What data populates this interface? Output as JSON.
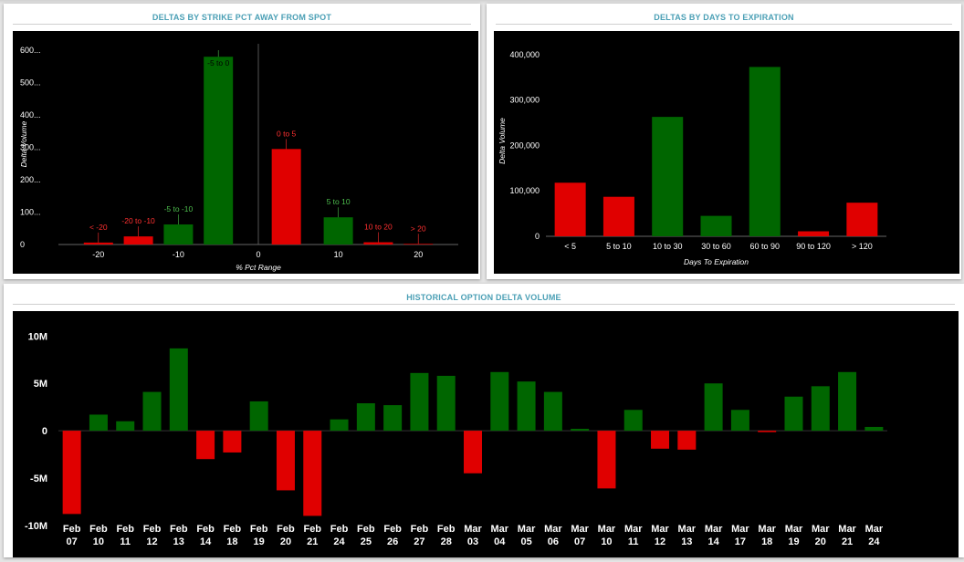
{
  "panels": {
    "strike": {
      "title": "DELTAS BY STRIKE PCT AWAY FROM SPOT"
    },
    "dte": {
      "title": "DELTAS BY DAYS TO EXPIRATION"
    },
    "history": {
      "title": "HISTORICAL OPTION DELTA VOLUME"
    }
  },
  "colors": {
    "positive": "#006600",
    "negative": "#e00000",
    "label_green": "#4cbc4c",
    "label_red": "#ff3030",
    "axis_text": "#ffffff"
  },
  "chart_data": [
    {
      "id": "strike",
      "type": "bar",
      "xlabel": "% Pct Range",
      "ylabel": "Delta Volume",
      "ylim": [
        0,
        620
      ],
      "xlim": [
        -25,
        25
      ],
      "y_ticks": [
        0,
        100,
        200,
        300,
        400,
        500,
        600
      ],
      "y_tick_labels": [
        "0",
        "100...",
        "200...",
        "300...",
        "400...",
        "500...",
        "600..."
      ],
      "x_ticks": [
        -20,
        -10,
        0,
        10,
        20
      ],
      "x_tick_labels": [
        "-20",
        "-10",
        "0",
        "10",
        "20"
      ],
      "bars": [
        {
          "label": "< -20",
          "x": -20,
          "value": 6,
          "color": "red"
        },
        {
          "label": "-20 to -10",
          "x": -15,
          "value": 25,
          "color": "red"
        },
        {
          "label": "-5 to -10",
          "x": -10,
          "value": 62,
          "color": "green"
        },
        {
          "label": "-5 to 0",
          "x": -5,
          "value": 580,
          "color": "green"
        },
        {
          "label": "0 to 5",
          "x": 3.5,
          "value": 295,
          "color": "red"
        },
        {
          "label": "5 to 10",
          "x": 10,
          "value": 84,
          "color": "green"
        },
        {
          "label": "10 to 20",
          "x": 15,
          "value": 7,
          "color": "red"
        },
        {
          "label": "> 20",
          "x": 20,
          "value": 2,
          "color": "red"
        }
      ]
    },
    {
      "id": "dte",
      "type": "bar",
      "xlabel": "Days To Expiration",
      "ylabel": "Delta Volume",
      "ylim": [
        0,
        420000
      ],
      "y_ticks": [
        0,
        100000,
        200000,
        300000,
        400000
      ],
      "y_tick_labels": [
        "0",
        "100,000",
        "200,000",
        "300,000",
        "400,000"
      ],
      "categories": [
        "< 5",
        "5 to 10",
        "10 to 30",
        "30 to 60",
        "60 to 90",
        "90 to 120",
        "> 120"
      ],
      "values": [
        118000,
        87000,
        263000,
        45000,
        373000,
        11000,
        74000
      ],
      "bar_colors": [
        "red",
        "red",
        "green",
        "green",
        "green",
        "red",
        "red"
      ]
    },
    {
      "id": "history",
      "type": "bar",
      "ylim": [
        -10500000,
        11000000
      ],
      "y_ticks": [
        -10000000,
        -5000000,
        0,
        5000000,
        10000000
      ],
      "y_tick_labels": [
        "-10M",
        "-5M",
        "0",
        "5M",
        "10M"
      ],
      "categories": [
        [
          "Feb",
          "07"
        ],
        [
          "Feb",
          "10"
        ],
        [
          "Feb",
          "11"
        ],
        [
          "Feb",
          "12"
        ],
        [
          "Feb",
          "13"
        ],
        [
          "Feb",
          "14"
        ],
        [
          "Feb",
          "18"
        ],
        [
          "Feb",
          "19"
        ],
        [
          "Feb",
          "20"
        ],
        [
          "Feb",
          "21"
        ],
        [
          "Feb",
          "24"
        ],
        [
          "Feb",
          "25"
        ],
        [
          "Feb",
          "26"
        ],
        [
          "Feb",
          "27"
        ],
        [
          "Feb",
          "28"
        ],
        [
          "Mar",
          "03"
        ],
        [
          "Mar",
          "04"
        ],
        [
          "Mar",
          "05"
        ],
        [
          "Mar",
          "06"
        ],
        [
          "Mar",
          "07"
        ],
        [
          "Mar",
          "10"
        ],
        [
          "Mar",
          "11"
        ],
        [
          "Mar",
          "12"
        ],
        [
          "Mar",
          "13"
        ],
        [
          "Mar",
          "14"
        ],
        [
          "Mar",
          "17"
        ],
        [
          "Mar",
          "18"
        ],
        [
          "Mar",
          "19"
        ],
        [
          "Mar",
          "20"
        ],
        [
          "Mar",
          "21"
        ],
        [
          "Mar",
          "24"
        ]
      ],
      "values": [
        -8800000,
        1700000,
        1000000,
        4100000,
        8700000,
        -3000000,
        -2300000,
        3100000,
        -6300000,
        -9000000,
        1200000,
        2900000,
        2700000,
        6100000,
        5800000,
        -4500000,
        6200000,
        5200000,
        4100000,
        200000,
        -6100000,
        2200000,
        -1900000,
        -2000000,
        5000000,
        2200000,
        -150000,
        3600000,
        4700000,
        6200000,
        400000
      ]
    }
  ]
}
